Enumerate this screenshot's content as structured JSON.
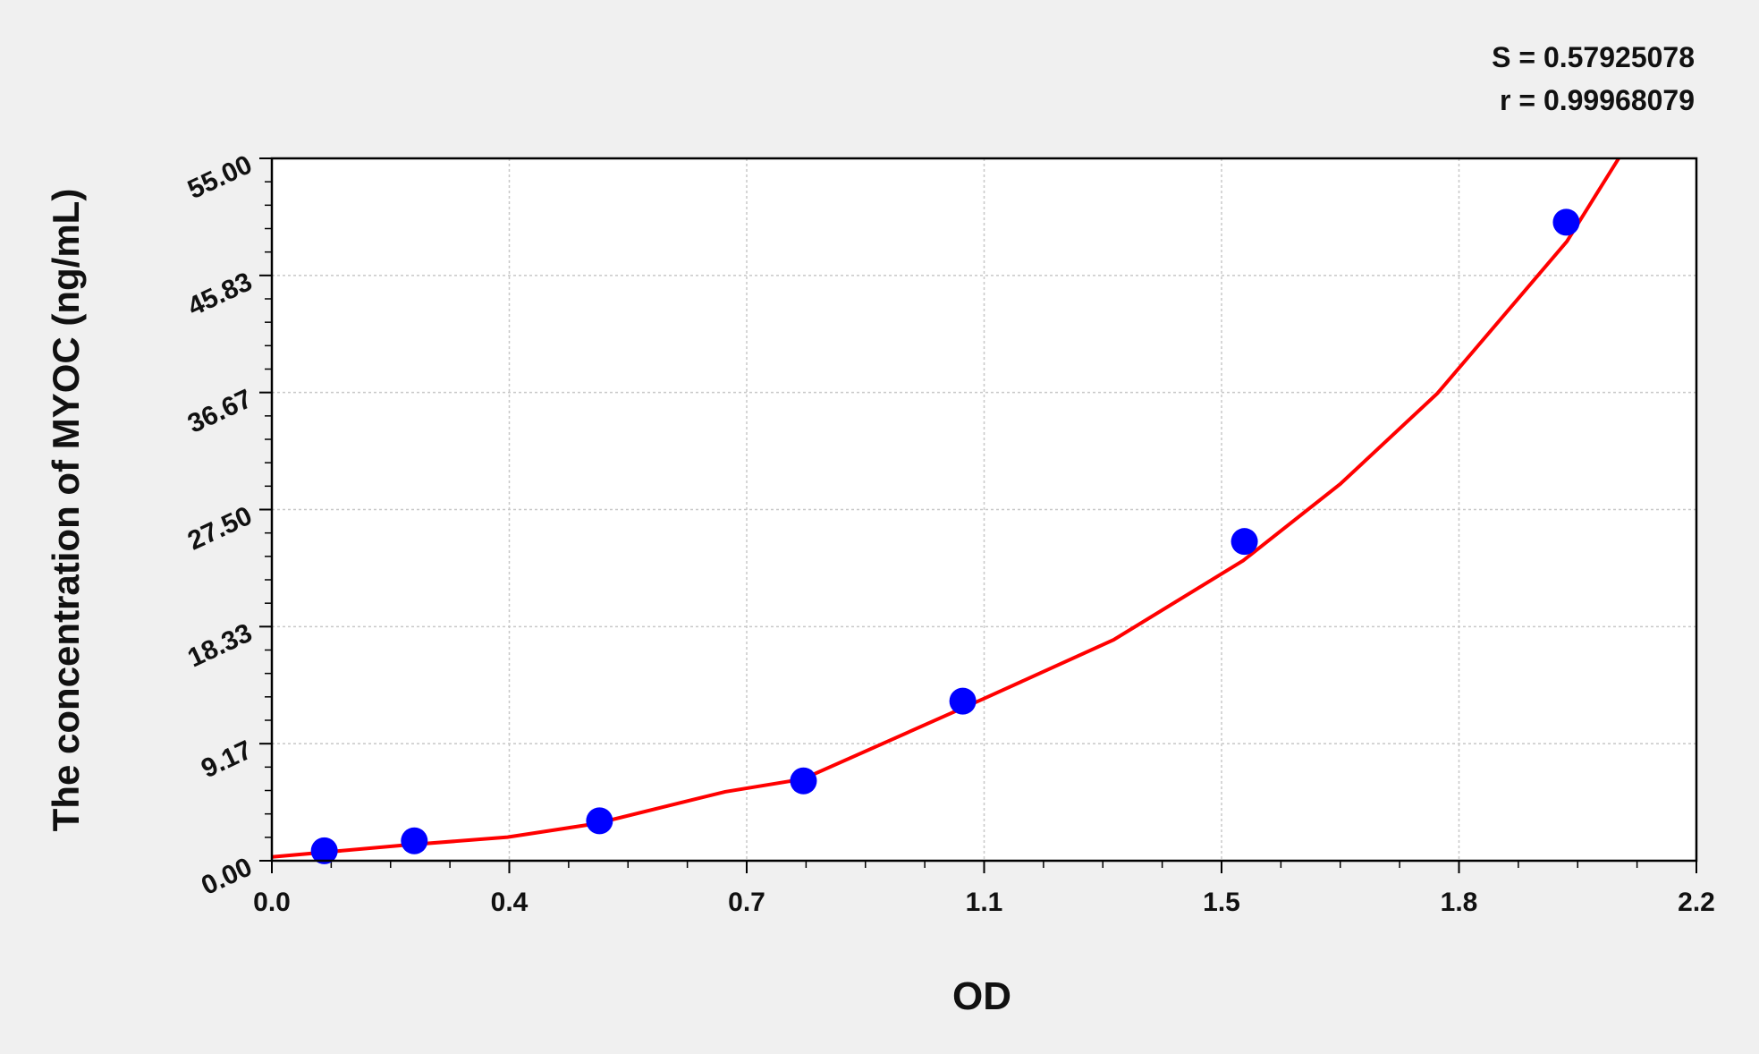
{
  "chart_data": {
    "type": "scatter",
    "title": "",
    "xlabel": "OD",
    "ylabel": "The concentration of MYOC (ng/mL)",
    "xlim": [
      0,
      2.2
    ],
    "ylim": [
      0,
      55
    ],
    "x_ticks": [
      "0.0",
      "0.4",
      "0.7",
      "1.1",
      "1.5",
      "1.8",
      "2.2"
    ],
    "y_ticks": [
      "0.00",
      "9.17",
      "18.33",
      "27.50",
      "36.67",
      "45.83",
      "55.00"
    ],
    "grid": true,
    "stats": [
      "S = 0.57925078",
      "r = 0.99968079"
    ],
    "points": {
      "x": [
        0.081,
        0.22,
        0.506,
        0.821,
        1.067,
        1.502,
        1.999
      ],
      "y": [
        0.78,
        1.56,
        3.125,
        6.25,
        12.5,
        25,
        50
      ],
      "color": "#0000ff"
    },
    "fit_curve": {
      "color": "#ff0000",
      "x": [
        0,
        0.2,
        0.364,
        0.5,
        0.7,
        0.82,
        1.1,
        1.3,
        1.5,
        1.65,
        1.8,
        2.0,
        2.08
      ],
      "y": [
        0.3,
        1.2,
        1.85,
        2.9,
        5.4,
        6.4,
        12.7,
        17.3,
        23.5,
        29.5,
        36.6,
        48.5,
        55
      ]
    }
  }
}
